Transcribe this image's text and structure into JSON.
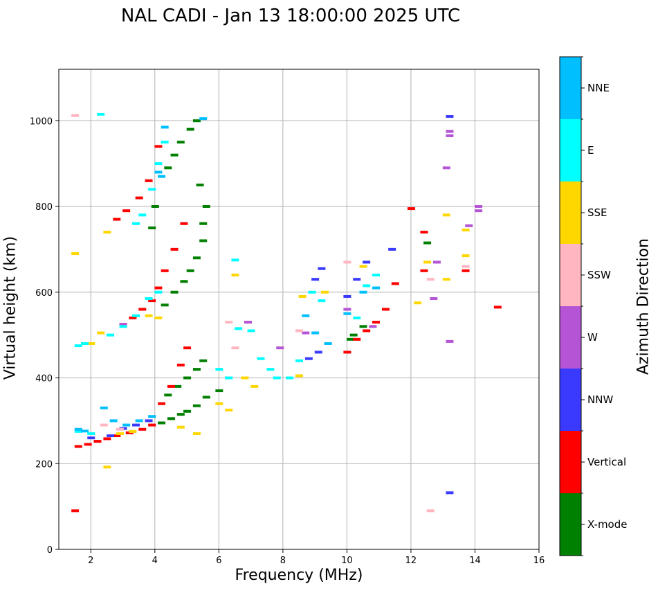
{
  "chart_data": {
    "type": "scatter",
    "title": "NAL CADI - Jan 13 18:00:00 2025 UTC",
    "xlabel": "Frequency (MHz)",
    "ylabel": "Virtual height (km)",
    "xlim": [
      1,
      16
    ],
    "ylim": [
      0,
      1120
    ],
    "xticks": [
      2,
      4,
      6,
      8,
      10,
      12,
      14,
      16
    ],
    "yticks": [
      0,
      200,
      400,
      600,
      800,
      1000
    ],
    "grid": true,
    "colorbar": {
      "label": "Azimuth Direction",
      "categories": [
        "X-mode",
        "Vertical",
        "NNW",
        "W",
        "SSW",
        "SSE",
        "E",
        "NNE"
      ],
      "colors": [
        "#008000",
        "#ff0000",
        "#3a3aff",
        "#b555d5",
        "#ffb6c1",
        "#ffd700",
        "#00ffff",
        "#00bfff"
      ]
    },
    "series": [
      {
        "name": "X-mode",
        "points": [
          [
            4.2,
            295
          ],
          [
            4.5,
            305
          ],
          [
            4.8,
            315
          ],
          [
            5.0,
            322
          ],
          [
            5.3,
            335
          ],
          [
            5.6,
            355
          ],
          [
            6.0,
            370
          ],
          [
            4.4,
            360
          ],
          [
            4.7,
            380
          ],
          [
            5.0,
            400
          ],
          [
            5.3,
            420
          ],
          [
            5.5,
            440
          ],
          [
            4.3,
            570
          ],
          [
            4.6,
            600
          ],
          [
            4.9,
            625
          ],
          [
            5.1,
            650
          ],
          [
            5.3,
            680
          ],
          [
            5.5,
            720
          ],
          [
            5.5,
            760
          ],
          [
            5.6,
            800
          ],
          [
            5.4,
            850
          ],
          [
            3.9,
            750
          ],
          [
            4.0,
            800
          ],
          [
            4.4,
            890
          ],
          [
            4.6,
            920
          ],
          [
            4.8,
            950
          ],
          [
            5.1,
            980
          ],
          [
            5.3,
            1000
          ],
          [
            10.2,
            500
          ],
          [
            10.5,
            520
          ],
          [
            10.1,
            490
          ],
          [
            12.5,
            715
          ]
        ]
      },
      {
        "name": "Vertical",
        "points": [
          [
            1.6,
            240
          ],
          [
            1.9,
            245
          ],
          [
            2.2,
            252
          ],
          [
            2.5,
            258
          ],
          [
            2.8,
            265
          ],
          [
            3.2,
            272
          ],
          [
            3.6,
            280
          ],
          [
            3.9,
            290
          ],
          [
            4.2,
            340
          ],
          [
            4.5,
            380
          ],
          [
            4.8,
            430
          ],
          [
            5.0,
            470
          ],
          [
            3.0,
            525
          ],
          [
            3.3,
            540
          ],
          [
            3.6,
            560
          ],
          [
            3.9,
            580
          ],
          [
            4.1,
            610
          ],
          [
            4.3,
            650
          ],
          [
            4.6,
            700
          ],
          [
            4.9,
            760
          ],
          [
            2.8,
            770
          ],
          [
            3.1,
            790
          ],
          [
            3.5,
            820
          ],
          [
            3.8,
            860
          ],
          [
            4.1,
            940
          ],
          [
            10.0,
            460
          ],
          [
            10.3,
            490
          ],
          [
            10.6,
            510
          ],
          [
            10.9,
            530
          ],
          [
            11.2,
            560
          ],
          [
            11.5,
            620
          ],
          [
            12.0,
            795
          ],
          [
            12.4,
            650
          ],
          [
            12.4,
            740
          ],
          [
            13.7,
            650
          ],
          [
            14.7,
            565
          ],
          [
            1.5,
            90
          ]
        ]
      },
      {
        "name": "NNW",
        "points": [
          [
            2.0,
            260
          ],
          [
            2.6,
            265
          ],
          [
            3.0,
            282
          ],
          [
            3.4,
            290
          ],
          [
            3.8,
            300
          ],
          [
            8.8,
            445
          ],
          [
            9.1,
            460
          ],
          [
            9.0,
            630
          ],
          [
            9.2,
            655
          ],
          [
            10.0,
            590
          ],
          [
            10.3,
            630
          ],
          [
            10.6,
            670
          ],
          [
            13.2,
            1010
          ],
          [
            13.2,
            132
          ],
          [
            11.4,
            700
          ]
        ]
      },
      {
        "name": "W",
        "points": [
          [
            3.0,
            525
          ],
          [
            6.9,
            530
          ],
          [
            7.9,
            470
          ],
          [
            8.7,
            505
          ],
          [
            10.0,
            560
          ],
          [
            10.8,
            520
          ],
          [
            12.7,
            585
          ],
          [
            13.1,
            890
          ],
          [
            13.2,
            975
          ],
          [
            13.2,
            965
          ],
          [
            13.2,
            485
          ],
          [
            14.1,
            790
          ],
          [
            14.1,
            800
          ],
          [
            13.8,
            755
          ],
          [
            12.8,
            670
          ]
        ]
      },
      {
        "name": "SSW",
        "points": [
          [
            1.5,
            1012
          ],
          [
            2.4,
            290
          ],
          [
            2.9,
            280
          ],
          [
            3.3,
            275
          ],
          [
            6.3,
            530
          ],
          [
            6.5,
            470
          ],
          [
            8.5,
            510
          ],
          [
            10.0,
            670
          ],
          [
            12.6,
            90
          ],
          [
            12.6,
            630
          ],
          [
            13.7,
            660
          ]
        ]
      },
      {
        "name": "SSE",
        "points": [
          [
            1.5,
            690
          ],
          [
            2.0,
            480
          ],
          [
            2.3,
            505
          ],
          [
            2.5,
            740
          ],
          [
            2.5,
            192
          ],
          [
            2.9,
            270
          ],
          [
            3.3,
            275
          ],
          [
            3.8,
            545
          ],
          [
            4.1,
            540
          ],
          [
            4.8,
            285
          ],
          [
            5.3,
            270
          ],
          [
            6.0,
            340
          ],
          [
            6.3,
            325
          ],
          [
            6.5,
            640
          ],
          [
            6.8,
            400
          ],
          [
            7.1,
            380
          ],
          [
            8.5,
            405
          ],
          [
            8.6,
            590
          ],
          [
            9.3,
            600
          ],
          [
            10.5,
            660
          ],
          [
            12.2,
            575
          ],
          [
            12.5,
            670
          ],
          [
            13.1,
            630
          ],
          [
            13.1,
            780
          ],
          [
            13.7,
            745
          ],
          [
            13.7,
            685
          ]
        ]
      },
      {
        "name": "E",
        "points": [
          [
            1.6,
            475
          ],
          [
            1.8,
            480
          ],
          [
            2.6,
            500
          ],
          [
            3.0,
            520
          ],
          [
            3.4,
            545
          ],
          [
            3.8,
            585
          ],
          [
            4.1,
            600
          ],
          [
            1.6,
            275
          ],
          [
            2.0,
            270
          ],
          [
            6.5,
            675
          ],
          [
            6.6,
            515
          ],
          [
            7.0,
            510
          ],
          [
            7.3,
            445
          ],
          [
            7.6,
            420
          ],
          [
            7.8,
            400
          ],
          [
            8.2,
            400
          ],
          [
            8.5,
            440
          ],
          [
            8.9,
            600
          ],
          [
            9.2,
            580
          ],
          [
            10.3,
            540
          ],
          [
            10.6,
            615
          ],
          [
            10.9,
            640
          ],
          [
            3.4,
            760
          ],
          [
            3.6,
            780
          ],
          [
            3.9,
            840
          ],
          [
            4.1,
            900
          ],
          [
            4.3,
            950
          ],
          [
            2.3,
            1015
          ],
          [
            6.3,
            400
          ],
          [
            6.0,
            420
          ]
        ]
      },
      {
        "name": "NNE",
        "points": [
          [
            1.6,
            280
          ],
          [
            1.8,
            276
          ],
          [
            2.4,
            330
          ],
          [
            2.7,
            300
          ],
          [
            3.1,
            290
          ],
          [
            3.5,
            300
          ],
          [
            3.9,
            310
          ],
          [
            4.1,
            880
          ],
          [
            4.3,
            985
          ],
          [
            4.2,
            870
          ],
          [
            5.5,
            1005
          ],
          [
            8.7,
            545
          ],
          [
            9.0,
            505
          ],
          [
            9.4,
            480
          ],
          [
            10.0,
            550
          ],
          [
            10.5,
            600
          ],
          [
            10.9,
            610
          ]
        ]
      }
    ]
  }
}
